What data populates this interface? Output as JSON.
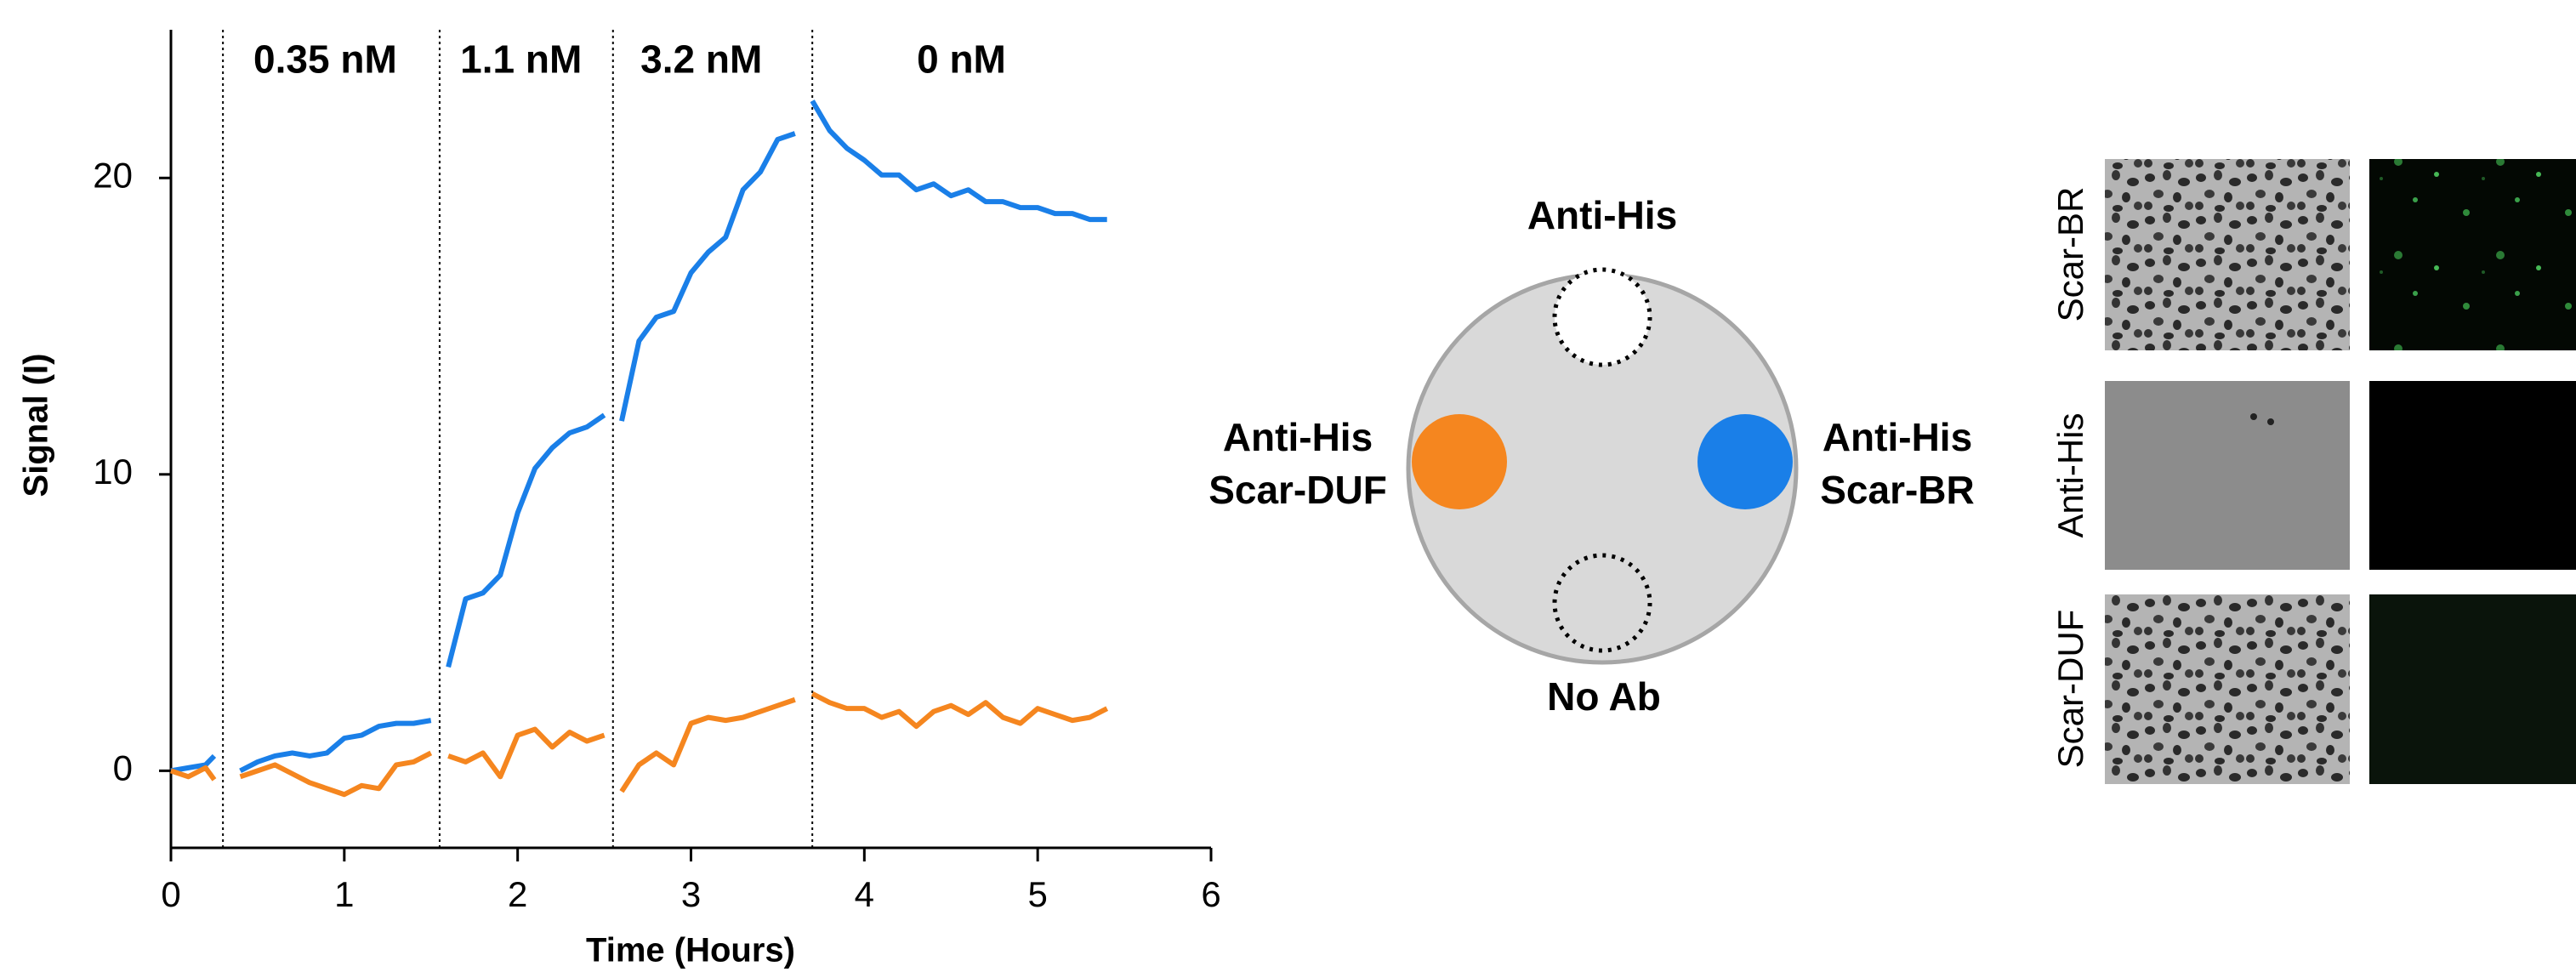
{
  "chart_data": {
    "type": "line",
    "xlabel": "Time (Hours)",
    "ylabel": "Signal (I)",
    "xlim": [
      0,
      6
    ],
    "xticks": [
      0,
      1,
      2,
      3,
      4,
      5,
      6
    ],
    "ylim": [
      -2.6,
      25
    ],
    "yticks": [
      0,
      10,
      20
    ],
    "vlines": [
      0.3,
      1.55,
      2.55,
      3.7
    ],
    "annotations": [
      {
        "text": "0.35 nM",
        "x": 0.89,
        "y": 23.9
      },
      {
        "text": "1.1 nM",
        "x": 2.02,
        "y": 23.9
      },
      {
        "text": "3.2 nM",
        "x": 3.06,
        "y": 23.9
      },
      {
        "text": "0 nM",
        "x": 4.56,
        "y": 23.9
      }
    ],
    "x": [
      0,
      0.1,
      0.2,
      0.25,
      0.3,
      0.4,
      0.5,
      0.6,
      0.7,
      0.8,
      0.9,
      1.0,
      1.1,
      1.2,
      1.3,
      1.4,
      1.5,
      1.55,
      1.6,
      1.7,
      1.8,
      1.9,
      2.0,
      2.1,
      2.2,
      2.3,
      2.4,
      2.5,
      2.55,
      2.6,
      2.7,
      2.8,
      2.9,
      3.0,
      3.1,
      3.2,
      3.3,
      3.4,
      3.5,
      3.6,
      3.65,
      3.7,
      3.8,
      3.9,
      4.0,
      4.1,
      4.2,
      4.3,
      4.4,
      4.5,
      4.6,
      4.7,
      4.8,
      4.9,
      5.0,
      5.1,
      5.2,
      5.3,
      5.4
    ],
    "series": [
      {
        "color": "#1a7fe8",
        "values": [
          0,
          0.1,
          0.2,
          0.5,
          null,
          0,
          0.3,
          0.5,
          0.6,
          0.5,
          0.6,
          1.1,
          1.2,
          1.5,
          1.6,
          1.6,
          1.7,
          null,
          3.5,
          5.8,
          6.0,
          6.6,
          8.7,
          10.2,
          10.9,
          11.4,
          11.6,
          12.0,
          null,
          11.8,
          14.5,
          15.3,
          15.5,
          16.8,
          17.5,
          18.0,
          19.6,
          20.2,
          21.3,
          21.5,
          null,
          22.6,
          21.6,
          21.0,
          20.6,
          20.1,
          20.1,
          19.6,
          19.8,
          19.4,
          19.6,
          19.2,
          19.2,
          19.0,
          19.0,
          18.8,
          18.8,
          18.6,
          18.6
        ]
      },
      {
        "color": "#f5861f",
        "values": [
          0,
          -0.2,
          0.1,
          -0.3,
          null,
          -0.2,
          0,
          0.2,
          -0.1,
          -0.4,
          -0.6,
          -0.8,
          -0.5,
          -0.6,
          0.2,
          0.3,
          0.6,
          null,
          0.5,
          0.3,
          0.6,
          -0.2,
          1.2,
          1.4,
          0.8,
          1.3,
          1.0,
          1.2,
          null,
          -0.7,
          0.2,
          0.6,
          0.2,
          1.6,
          1.8,
          1.7,
          1.8,
          2.0,
          2.2,
          2.4,
          null,
          2.6,
          2.3,
          2.1,
          2.1,
          1.8,
          2.0,
          1.5,
          2.0,
          2.2,
          1.9,
          2.3,
          1.8,
          1.6,
          2.1,
          1.9,
          1.7,
          1.8,
          2.1
        ]
      }
    ]
  },
  "diagram": {
    "top": "Anti-His",
    "left": [
      "Anti-His",
      "Scar-DUF"
    ],
    "right": [
      "Anti-His",
      "Scar-BR"
    ],
    "bottom": "No Ab"
  },
  "images": {
    "rows": [
      "Scar-BR",
      "Anti-His",
      "Scar-DUF"
    ]
  }
}
